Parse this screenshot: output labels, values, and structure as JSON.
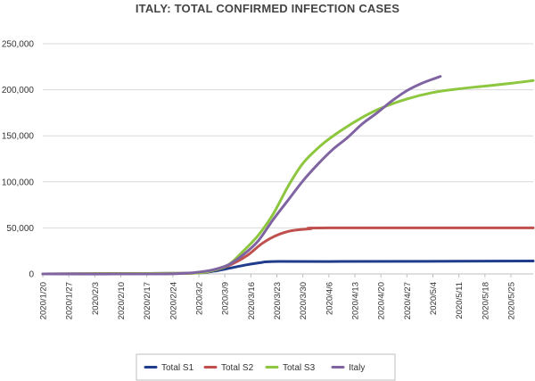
{
  "chart_data": {
    "type": "line",
    "title": "ITALY: TOTAL CONFIRMED INFECTION CASES",
    "xlabel": "",
    "ylabel": "",
    "ylim": [
      0,
      250000
    ],
    "yticks": [
      0,
      50000,
      100000,
      150000,
      200000,
      250000
    ],
    "ytick_labels": [
      "0",
      "50,000",
      "100,000",
      "150,000",
      "200,000",
      "250,000"
    ],
    "x_start": "2020/1/20",
    "x_end": "2020/5/31",
    "xticks": [
      "2020/1/20",
      "2020/1/27",
      "2020/2/3",
      "2020/2/10",
      "2020/2/17",
      "2020/2/24",
      "2020/3/2",
      "2020/3/9",
      "2020/3/16",
      "2020/3/23",
      "2020/3/30",
      "2020/4/6",
      "2020/4/13",
      "2020/4/20",
      "2020/4/27",
      "2020/5/4",
      "2020/5/11",
      "2020/5/18",
      "2020/5/25"
    ],
    "grid": true,
    "legend_position": "bottom",
    "series": [
      {
        "name": "Total S1",
        "color": "#1f3d8c",
        "points": [
          [
            "2020/1/20",
            0
          ],
          [
            "2020/2/17",
            500
          ],
          [
            "2020/3/1",
            1000
          ],
          [
            "2020/3/6",
            3000
          ],
          [
            "2020/3/10",
            6000
          ],
          [
            "2020/3/15",
            10000
          ],
          [
            "2020/3/19",
            12500
          ],
          [
            "2020/3/22",
            13500
          ],
          [
            "2020/4/6",
            13500
          ],
          [
            "2020/5/31",
            14000
          ]
        ]
      },
      {
        "name": "Total S2",
        "color": "#c0504d",
        "points": [
          [
            "2020/1/20",
            0
          ],
          [
            "2020/2/17",
            500
          ],
          [
            "2020/3/1",
            1000
          ],
          [
            "2020/3/6",
            4000
          ],
          [
            "2020/3/10",
            9000
          ],
          [
            "2020/3/15",
            20000
          ],
          [
            "2020/3/19",
            33000
          ],
          [
            "2020/3/23",
            42000
          ],
          [
            "2020/3/27",
            47000
          ],
          [
            "2020/4/1",
            49000
          ],
          [
            "2020/4/6",
            50000
          ],
          [
            "2020/5/31",
            50000
          ]
        ]
      },
      {
        "name": "Total S3",
        "color": "#8dc63f",
        "points": [
          [
            "2020/1/20",
            0
          ],
          [
            "2020/2/17",
            500
          ],
          [
            "2020/3/1",
            1000
          ],
          [
            "2020/3/6",
            4000
          ],
          [
            "2020/3/10",
            10000
          ],
          [
            "2020/3/14",
            25000
          ],
          [
            "2020/3/18",
            42000
          ],
          [
            "2020/3/22",
            65000
          ],
          [
            "2020/3/26",
            95000
          ],
          [
            "2020/3/30",
            120000
          ],
          [
            "2020/4/4",
            140000
          ],
          [
            "2020/4/9",
            155000
          ],
          [
            "2020/4/15",
            170000
          ],
          [
            "2020/4/20",
            180000
          ],
          [
            "2020/4/27",
            190000
          ],
          [
            "2020/5/4",
            197000
          ],
          [
            "2020/5/11",
            201000
          ],
          [
            "2020/5/18",
            204000
          ],
          [
            "2020/5/25",
            207000
          ],
          [
            "2020/5/31",
            210000
          ]
        ]
      },
      {
        "name": "Italy",
        "color": "#8064a2",
        "points": [
          [
            "2020/1/20",
            0
          ],
          [
            "2020/2/21",
            0
          ],
          [
            "2020/2/28",
            1000
          ],
          [
            "2020/3/2",
            2000
          ],
          [
            "2020/3/6",
            4600
          ],
          [
            "2020/3/10",
            10000
          ],
          [
            "2020/3/14",
            21000
          ],
          [
            "2020/3/18",
            36000
          ],
          [
            "2020/3/22",
            59000
          ],
          [
            "2020/3/26",
            80000
          ],
          [
            "2020/3/30",
            101000
          ],
          [
            "2020/4/3",
            119000
          ],
          [
            "2020/4/7",
            135000
          ],
          [
            "2020/4/11",
            148000
          ],
          [
            "2020/4/15",
            163000
          ],
          [
            "2020/4/19",
            175000
          ],
          [
            "2020/4/23",
            188000
          ],
          [
            "2020/4/27",
            199000
          ],
          [
            "2020/5/1",
            207000
          ],
          [
            "2020/5/5",
            213000
          ],
          [
            "2020/5/6",
            214500
          ]
        ]
      }
    ]
  }
}
